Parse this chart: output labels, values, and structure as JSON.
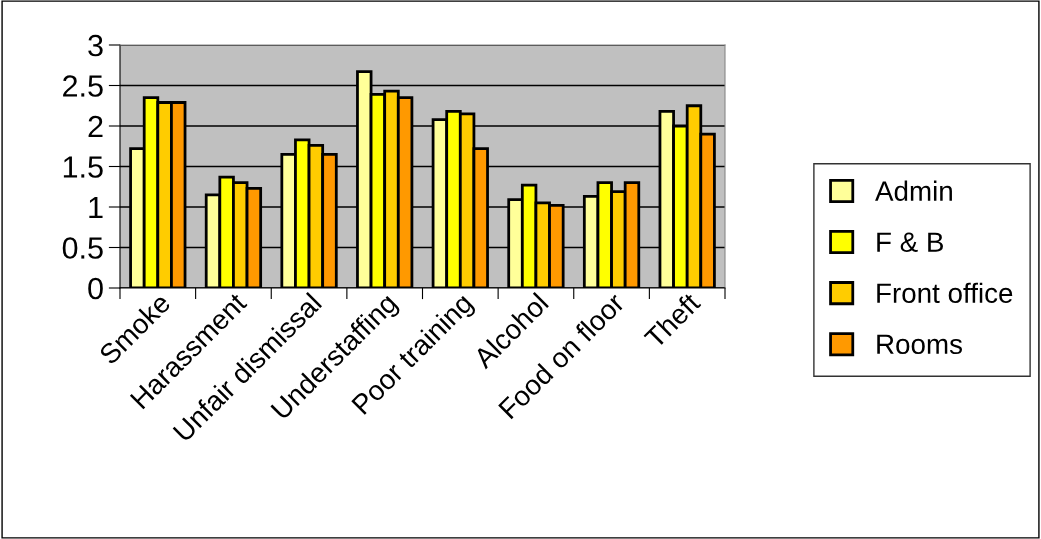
{
  "chart_data": {
    "type": "bar",
    "categories": [
      "Smoke",
      "Harassment",
      "Unfair dismissal",
      "Understaffing",
      "Poor training",
      "Alcohol",
      "Food on floor",
      "Theft"
    ],
    "series": [
      {
        "name": "Admin",
        "color": "#ffff99",
        "values": [
          1.72,
          1.15,
          1.65,
          2.67,
          2.08,
          1.09,
          1.13,
          2.18
        ]
      },
      {
        "name": "F & B",
        "color": "#ffff00",
        "values": [
          2.35,
          1.37,
          1.83,
          2.39,
          2.18,
          1.27,
          1.3,
          2.0
        ]
      },
      {
        "name": "Front office",
        "color": "#ffcc00",
        "values": [
          2.29,
          1.3,
          1.76,
          2.43,
          2.15,
          1.05,
          1.19,
          2.25
        ]
      },
      {
        "name": "Rooms",
        "color": "#ff9900",
        "values": [
          2.29,
          1.23,
          1.65,
          2.35,
          1.72,
          1.02,
          1.3,
          1.9
        ]
      }
    ],
    "ylim": [
      0,
      3
    ],
    "yticks": [
      0,
      0.5,
      1,
      1.5,
      2,
      2.5,
      3
    ],
    "grid": "y",
    "legend": "right"
  }
}
